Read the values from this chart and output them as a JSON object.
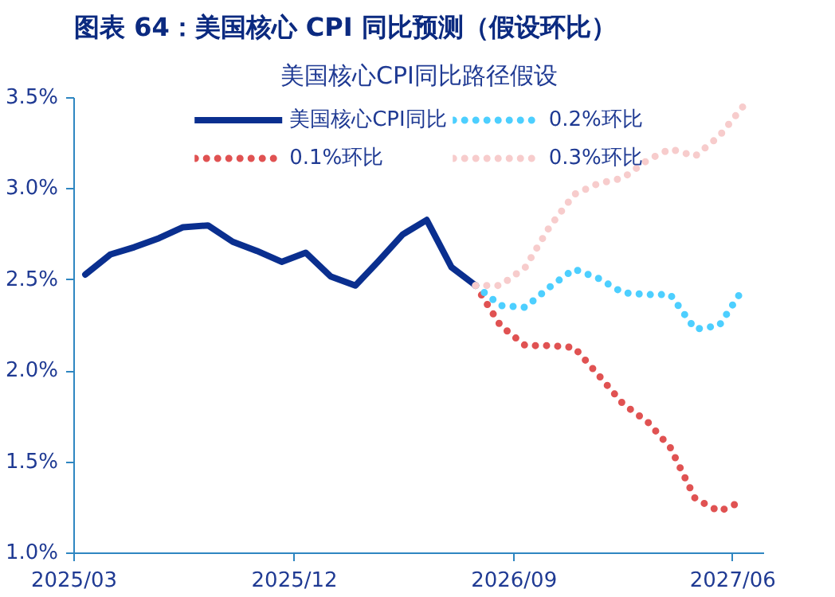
{
  "chart_data": {
    "type": "line",
    "title": "图表 64：美国核心 CPI 同比预测（假设环比）",
    "subtitle": "美国核心CPI同比路径假设",
    "xlim": [
      "2025-03-01",
      "2027-07-10"
    ],
    "xticks": [
      {
        "value": "2025-03-01",
        "label": "2025/03"
      },
      {
        "value": "2025-12-01",
        "label": "2025/12"
      },
      {
        "value": "2026-09-01",
        "label": "2026/09"
      },
      {
        "value": "2027-06-01",
        "label": "2027/06"
      }
    ],
    "ylim": [
      1.0,
      3.5
    ],
    "yticks": [
      {
        "value": 1.0,
        "label": "1.0%"
      },
      {
        "value": 1.5,
        "label": "1.5%"
      },
      {
        "value": 2.0,
        "label": "2.0%"
      },
      {
        "value": 2.5,
        "label": "2.5%"
      },
      {
        "value": 3.0,
        "label": "3.0%"
      },
      {
        "value": 3.5,
        "label": "3.5%"
      }
    ],
    "grid": false,
    "legend": "top",
    "marker": "none",
    "series": [
      {
        "name": "美国核心CPI同比",
        "color": "#0a2f8f",
        "line_style": "solid",
        "x": [
          "2025-03-15",
          "2025-04-15",
          "2025-05-15",
          "2025-06-15",
          "2025-07-15",
          "2025-08-15",
          "2025-09-15",
          "2025-10-15",
          "2025-11-15",
          "2025-12-15",
          "2026-01-15",
          "2026-02-15",
          "2026-03-15",
          "2026-04-15",
          "2026-05-15",
          "2026-06-15",
          "2026-07-15"
        ],
        "values": [
          2.53,
          2.64,
          2.68,
          2.73,
          2.79,
          2.8,
          2.71,
          2.66,
          2.6,
          2.65,
          2.52,
          2.47,
          2.6,
          2.75,
          2.83,
          2.57,
          2.47
        ]
      },
      {
        "name": "0.1%环比",
        "color": "#e05252",
        "line_style": "dotted",
        "x": [
          "2026-07-15",
          "2026-08-15",
          "2026-09-15",
          "2026-10-15",
          "2026-11-15",
          "2026-12-15",
          "2027-01-15",
          "2027-02-15",
          "2027-03-15",
          "2027-04-15",
          "2027-05-15",
          "2027-06-15"
        ],
        "values": [
          2.47,
          2.25,
          2.14,
          2.14,
          2.13,
          1.98,
          1.82,
          1.72,
          1.58,
          1.3,
          1.23,
          1.29
        ]
      },
      {
        "name": "0.2%环比",
        "color": "#4dcfff",
        "line_style": "dotted",
        "x": [
          "2026-07-15",
          "2026-08-15",
          "2026-09-15",
          "2026-10-15",
          "2026-11-15",
          "2026-12-15",
          "2027-01-15",
          "2027-02-15",
          "2027-03-15",
          "2027-04-15",
          "2027-05-15",
          "2027-06-15"
        ],
        "values": [
          2.47,
          2.36,
          2.35,
          2.46,
          2.56,
          2.51,
          2.43,
          2.42,
          2.42,
          2.23,
          2.25,
          2.46
        ]
      },
      {
        "name": "0.3%环比",
        "color": "#f7cccc",
        "line_style": "dotted",
        "x": [
          "2026-07-15",
          "2026-08-15",
          "2026-09-15",
          "2026-10-15",
          "2026-11-15",
          "2026-12-15",
          "2027-01-15",
          "2027-02-15",
          "2027-03-15",
          "2027-04-15",
          "2027-05-15",
          "2027-06-15"
        ],
        "values": [
          2.47,
          2.47,
          2.57,
          2.79,
          2.97,
          3.03,
          3.06,
          3.16,
          3.22,
          3.18,
          3.29,
          3.46
        ]
      }
    ]
  }
}
